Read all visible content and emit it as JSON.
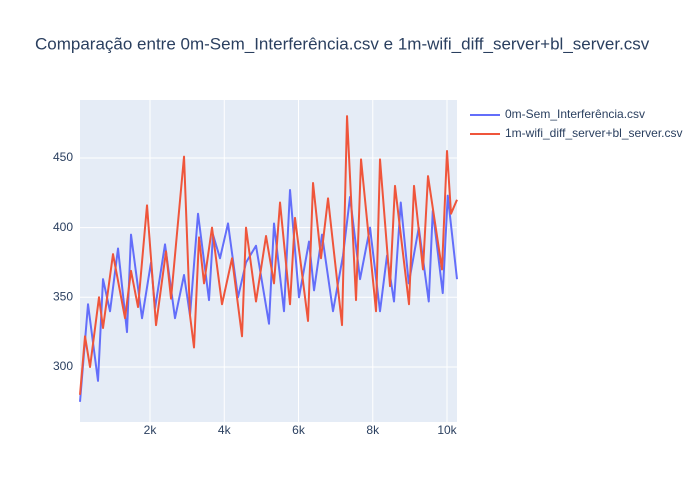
{
  "chart_data": {
    "type": "line",
    "title": "Comparação entre 0m-Sem_Interferência.csv e 1m-wifi_diff_server+bl_server.csv",
    "xlim": [
      114,
      10269
    ],
    "ylim": [
      260.5,
      491.6
    ],
    "xticks": [
      {
        "value": 2000,
        "label": "2k"
      },
      {
        "value": 4000,
        "label": "4k"
      },
      {
        "value": 6000,
        "label": "6k"
      },
      {
        "value": 8000,
        "label": "8k"
      },
      {
        "value": 10000,
        "label": "10k"
      }
    ],
    "yticks": [
      300,
      350,
      400,
      450
    ],
    "grid": true,
    "legend": "right",
    "series": [
      {
        "name": "0m-Sem_Interferência.csv",
        "color": "#636efa",
        "x": [
          114,
          330,
          599,
          734,
          923,
          1138,
          1380,
          1488,
          1785,
          2027,
          2135,
          2404,
          2673,
          2916,
          3077,
          3293,
          3589,
          3697,
          3885,
          4101,
          4370,
          4586,
          4855,
          5205,
          5340,
          5609,
          5771,
          6013,
          6283,
          6418,
          6633,
          6929,
          7199,
          7387,
          7657,
          7926,
          8195,
          8384,
          8572,
          8754,
          8970,
          9239,
          9508,
          9616,
          9885,
          10020,
          10269
        ],
        "values": [
          275,
          345,
          290,
          363,
          340,
          385,
          325,
          395,
          335,
          375,
          342,
          388,
          335,
          366,
          337,
          410,
          348,
          395,
          378,
          403,
          350,
          375,
          387,
          331,
          403,
          340,
          427,
          350,
          390,
          355,
          395,
          340,
          380,
          422,
          363,
          400,
          340,
          380,
          347,
          418,
          360,
          400,
          347,
          412,
          353,
          423,
          363
        ]
      },
      {
        "name": "1m-wifi_diff_server+bl_server.csv",
        "color": "#ef553b",
        "x": [
          114,
          249,
          384,
          626,
          734,
          1003,
          1327,
          1488,
          1677,
          1919,
          2162,
          2431,
          2566,
          2916,
          3077,
          3185,
          3320,
          3455,
          3670,
          3939,
          4209,
          4478,
          4586,
          4855,
          5125,
          5340,
          5502,
          5771,
          5905,
          6256,
          6391,
          6606,
          6795,
          7172,
          7307,
          7549,
          7684,
          8088,
          8195,
          8465,
          8599,
          8976,
          9111,
          9353,
          9488,
          9865,
          10000,
          10108,
          10269
        ],
        "values": [
          280,
          322,
          300,
          350,
          328,
          381,
          335,
          369,
          343,
          416,
          330,
          383,
          349,
          451,
          337,
          314,
          393,
          360,
          400,
          345,
          378,
          322,
          400,
          347,
          394,
          360,
          418,
          345,
          407,
          333,
          432,
          378,
          421,
          330,
          480,
          348,
          449,
          340,
          449,
          358,
          430,
          345,
          430,
          370,
          437,
          370,
          455,
          410,
          420
        ]
      }
    ]
  }
}
